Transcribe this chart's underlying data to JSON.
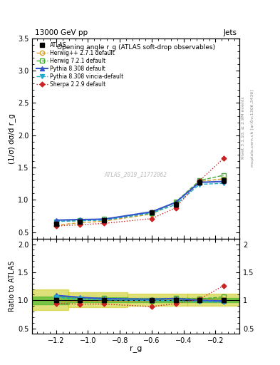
{
  "title_left": "13000 GeV pp",
  "title_right": "Jets",
  "plot_title": "Opening angle r_g (ATLAS soft-drop observables)",
  "xlabel": "r_g",
  "ylabel_main": "(1/σ) dσ/d r_g",
  "ylabel_ratio": "Ratio to ATLAS",
  "watermark": "ATLAS_2019_I1772062",
  "rivet_label": "Rivet 3.1.10, ≥ 2.9M events",
  "arxiv_label": "mcplots.cern.ch [arXiv:1306.3436]",
  "x_values": [
    -1.2,
    -1.05,
    -0.9,
    -0.6,
    -0.45,
    -0.3,
    -0.15
  ],
  "atlas_y": [
    0.63,
    0.66,
    0.68,
    0.8,
    0.93,
    1.27,
    1.3
  ],
  "atlas_yerr": [
    0.025,
    0.02,
    0.02,
    0.025,
    0.035,
    0.04,
    0.04
  ],
  "herwig_pp_y": [
    0.61,
    0.645,
    0.67,
    0.78,
    0.96,
    1.285,
    1.325
  ],
  "herwig_7_y": [
    0.665,
    0.68,
    0.705,
    0.795,
    0.965,
    1.3,
    1.38
  ],
  "pythia_default_y": [
    0.685,
    0.695,
    0.7,
    0.815,
    0.96,
    1.27,
    1.285
  ],
  "pythia_vincia_y": [
    0.665,
    0.675,
    0.685,
    0.795,
    0.925,
    1.24,
    1.255
  ],
  "sherpa_y": [
    0.595,
    0.615,
    0.635,
    0.71,
    0.875,
    1.295,
    1.64
  ],
  "atlas_color": "#000000",
  "herwig_pp_color": "#d4a028",
  "herwig_7_color": "#44aa33",
  "pythia_default_color": "#3355cc",
  "pythia_vincia_color": "#22aacc",
  "sherpa_color": "#cc2222",
  "ylim_main": [
    0.4,
    3.5
  ],
  "ylim_ratio": [
    0.4,
    2.1
  ],
  "xlim": [
    -1.35,
    -0.05
  ],
  "band_inner_color": "#55bb33",
  "band_outer_color": "#cccc22",
  "band_inner_alpha": 0.75,
  "band_outer_alpha": 0.6,
  "band_x": [
    -1.35,
    -1.125,
    -0.75,
    -0.375,
    -0.05
  ],
  "band_inner_lo": [
    0.93,
    0.95,
    0.97,
    0.97,
    0.97
  ],
  "band_inner_hi": [
    1.08,
    1.06,
    1.04,
    1.04,
    1.04
  ],
  "band_outer_lo": [
    0.82,
    0.85,
    0.9,
    0.9,
    0.9
  ],
  "band_outer_hi": [
    1.2,
    1.17,
    1.12,
    1.12,
    1.12
  ]
}
